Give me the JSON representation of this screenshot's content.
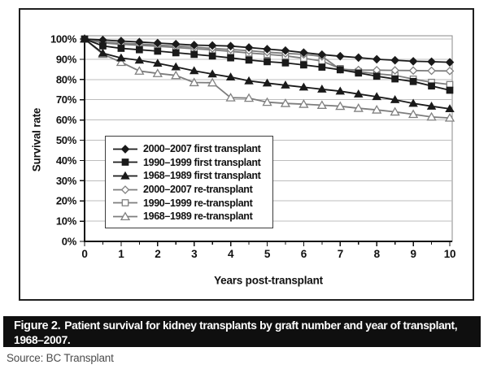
{
  "figure": {
    "caption_label": "Figure 2.",
    "caption_text": "Patient survival for kidney transplants by graft number and year of transplant, 1968–2007.",
    "source": "Source: BC Transplant"
  },
  "colors": {
    "first_transplant_line": "#1a1a1a",
    "re_transplant_line": "#7d7d7d",
    "grid": "#bdbdbd",
    "axis": "#111111",
    "plot_frame": "#8a8a8a",
    "caption_bg": "#0f0f0f",
    "caption_fg": "#ffffff"
  },
  "chart_data": {
    "type": "line",
    "xlabel": "Years post-transplant",
    "ylabel": "Survival rate",
    "xlim": [
      0,
      10
    ],
    "ylim": [
      0,
      100
    ],
    "grid": "horizontal",
    "legend_position": "inside-lower-left",
    "x_ticks": [
      0,
      1,
      2,
      3,
      4,
      5,
      6,
      7,
      8,
      9,
      10
    ],
    "x_minor_tick_step": 0.5,
    "y_ticks": [
      "0%",
      "10%",
      "20%",
      "30%",
      "40%",
      "50%",
      "60%",
      "70%",
      "80%",
      "90%",
      "100%"
    ],
    "x": [
      0,
      0.5,
      1,
      1.5,
      2,
      2.5,
      3,
      3.5,
      4,
      4.5,
      5,
      5.5,
      6,
      6.5,
      7,
      7.5,
      8,
      8.5,
      9,
      9.5,
      10
    ],
    "series": [
      {
        "name": "2000–2007 first transplant",
        "marker": "diamond",
        "fill": "filled",
        "color": "#1a1a1a",
        "values": [
          100,
          99.5,
          99,
          98.5,
          98,
          97.5,
          97,
          96.8,
          96.5,
          95.8,
          95,
          94.3,
          93.3,
          92.3,
          91.5,
          90.8,
          90,
          89.5,
          89,
          88.8,
          88.5
        ]
      },
      {
        "name": "1990–1999 first transplant",
        "marker": "square",
        "fill": "filled",
        "color": "#1a1a1a",
        "values": [
          100,
          96.6,
          95.4,
          94.7,
          94,
          93.2,
          92.4,
          91.6,
          90.7,
          89.6,
          88.8,
          88.2,
          87.2,
          86.1,
          84.8,
          83.2,
          81.6,
          80.3,
          79,
          76.8,
          74.7
        ]
      },
      {
        "name": "1968–1989 first transplant",
        "marker": "triangle",
        "fill": "filled",
        "color": "#1a1a1a",
        "values": [
          100,
          93,
          90.6,
          89.5,
          88,
          86.2,
          84.3,
          82.7,
          81.2,
          79.3,
          78.2,
          77.2,
          76.2,
          75.2,
          74.2,
          72.8,
          71.5,
          70,
          68.2,
          66.8,
          65.5
        ]
      },
      {
        "name": "2000–2007 re-transplant",
        "marker": "diamond",
        "fill": "open",
        "color": "#7d7d7d",
        "values": [
          100,
          98.5,
          98,
          97.5,
          97,
          96.5,
          96,
          95.4,
          94.8,
          94.2,
          93.5,
          92.9,
          92.4,
          91.4,
          85,
          84.7,
          84.6,
          84.5,
          84.4,
          84.3,
          84.2
        ]
      },
      {
        "name": "1990–1999 re-transplant",
        "marker": "square",
        "fill": "open",
        "color": "#7d7d7d",
        "values": [
          100,
          98,
          97.4,
          96.9,
          96.4,
          95.8,
          95.2,
          94.6,
          93.9,
          93.1,
          92.4,
          91.7,
          90.5,
          89.1,
          85.4,
          83.9,
          82.8,
          82,
          80.2,
          78.6,
          77.5
        ]
      },
      {
        "name": "1968–1989 re-transplant",
        "marker": "triangle",
        "fill": "open",
        "color": "#7d7d7d",
        "values": [
          100,
          92.5,
          88.5,
          84.2,
          83,
          82,
          78.5,
          78.4,
          71,
          70.8,
          68.8,
          68.2,
          67.8,
          67.3,
          66.8,
          65.8,
          65,
          64,
          62.8,
          61.5,
          61
        ]
      }
    ]
  }
}
